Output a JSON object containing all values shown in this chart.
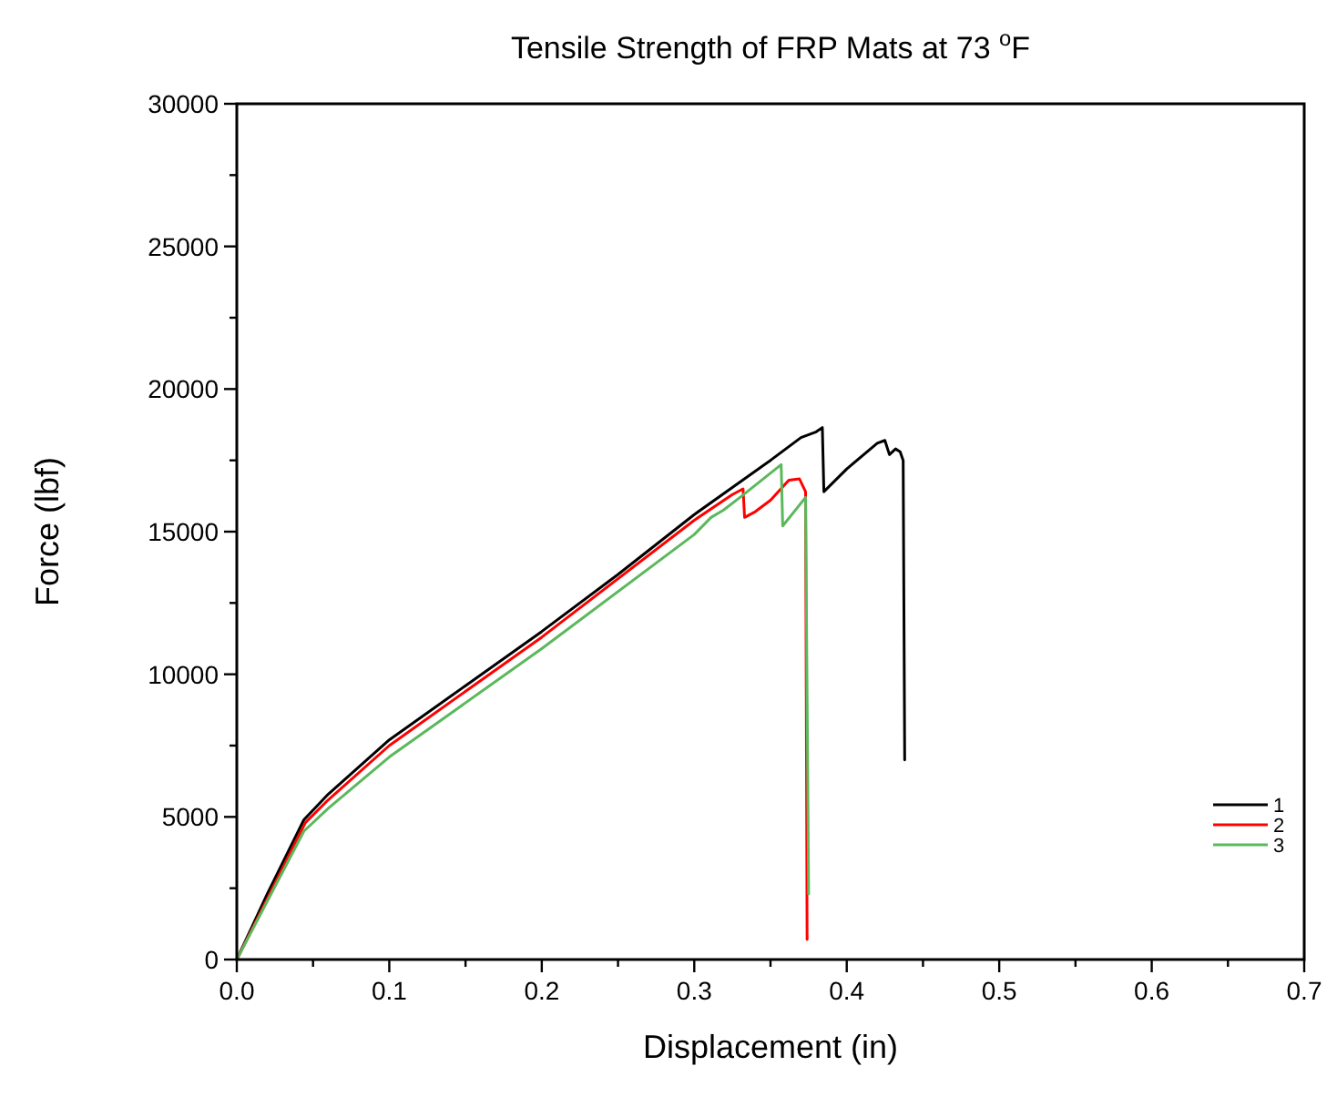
{
  "chart_data": {
    "type": "line",
    "title": "Tensile Strength of FRP Mats at 73 $^{o}$F",
    "xlabel": "Displacement (in)",
    "ylabel": "Force (lbf)",
    "xlim": [
      0,
      0.7
    ],
    "ylim": [
      0,
      30000
    ],
    "xticks": [
      {
        "value": 0,
        "label": "0.0"
      },
      {
        "value": 0.05,
        "label": null
      },
      0.1,
      {
        "value": 0.15,
        "label": null
      },
      0.2,
      {
        "value": 0.25,
        "label": null
      },
      0.3,
      {
        "value": 0.35,
        "label": null
      },
      0.4,
      {
        "value": 0.45,
        "label": null
      },
      0.5,
      {
        "value": 0.55,
        "label": null
      },
      0.6,
      {
        "value": 0.65,
        "label": null
      },
      0.7
    ],
    "yticks": [
      0,
      {
        "value": 2500,
        "label": null
      },
      5000,
      {
        "value": 7500,
        "label": null
      },
      10000,
      {
        "value": 12500,
        "label": null
      },
      15000,
      {
        "value": 17500,
        "label": null
      },
      20000,
      {
        "value": 22500,
        "label": null
      },
      25000,
      {
        "value": 27500,
        "label": null
      },
      30000
    ],
    "grid": false,
    "legend": "bottom right",
    "marker": "none",
    "line_style": "solid",
    "series": [
      {
        "name": "1",
        "color": "#000000",
        "x": [
          0,
          0.02,
          0.044,
          0.06,
          0.1,
          0.15,
          0.2,
          0.25,
          0.3,
          0.35,
          0.37,
          0.38,
          0.384,
          0.385,
          0.4,
          0.42,
          0.425,
          0.428,
          0.432,
          0.435,
          0.437,
          0.438
        ],
        "values": [
          0,
          2300,
          4900,
          5800,
          7700,
          9600,
          11500,
          13500,
          15600,
          17500,
          18300,
          18500,
          18650,
          16400,
          17200,
          18100,
          18200,
          17700,
          17900,
          17800,
          17500,
          7000
        ]
      },
      {
        "name": "2",
        "color": "#ff0000",
        "x": [
          0,
          0.045,
          0.06,
          0.1,
          0.2,
          0.3,
          0.325,
          0.332,
          0.333,
          0.34,
          0.35,
          0.362,
          0.369,
          0.373,
          0.374
        ],
        "values": [
          0,
          4800,
          5600,
          7500,
          11300,
          15400,
          16300,
          16500,
          15500,
          15700,
          16100,
          16800,
          16850,
          16400,
          700
        ]
      },
      {
        "name": "3",
        "color": "#5cb85c",
        "x": [
          0,
          0.044,
          0.06,
          0.1,
          0.2,
          0.3,
          0.311,
          0.319,
          0.33,
          0.357,
          0.358,
          0.373,
          0.375
        ],
        "values": [
          0,
          4500,
          5300,
          7100,
          10900,
          14900,
          15500,
          15750,
          16200,
          17350,
          15200,
          16200,
          2300
        ]
      }
    ]
  }
}
